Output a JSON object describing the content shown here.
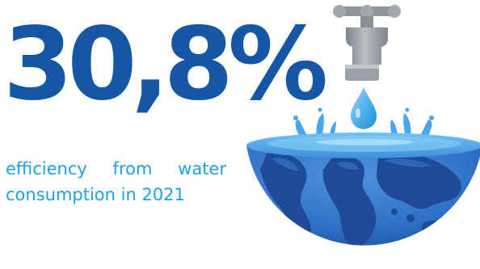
{
  "stat": {
    "value": "30,8%",
    "caption_words_line1": [
      "efficiency",
      "from",
      "water"
    ],
    "caption_line2": "consumption in 2021"
  },
  "colors": {
    "primary_blue": "#1557a5",
    "accent_blue": "#1ea0e3",
    "ocean_blue": "#2f72c8",
    "ocean_dark": "#1d4f9c",
    "land_blue": "#1f4a97",
    "water_light": "#5fb9f0",
    "faucet_gray": "#9aa0a6",
    "faucet_dark": "#6f767d"
  },
  "illustration": {
    "icon": "globe-bowl-with-faucet-icon"
  }
}
